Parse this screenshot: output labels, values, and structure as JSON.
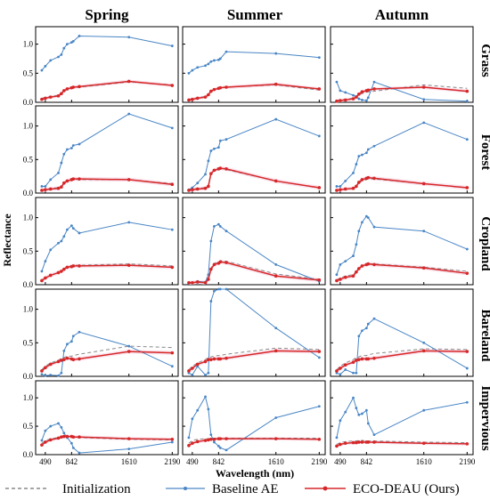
{
  "chart_data": {
    "type": "line",
    "columns": [
      "Spring",
      "Summer",
      "Autumn"
    ],
    "rows": [
      "Grass",
      "Forest",
      "Cropland",
      "Bareland",
      "Impervious"
    ],
    "xlabel": "Wavelength (nm)",
    "ylabel": "Reflectance",
    "x_ticks": [
      490,
      842,
      1610,
      2190
    ],
    "y_ticks": [
      0.0,
      0.5,
      1.0
    ],
    "ylim": [
      0,
      1.3
    ],
    "x": [
      443,
      490,
      560,
      665,
      705,
      740,
      783,
      842,
      865,
      945,
      1610,
      2190
    ],
    "legend": [
      {
        "name": "Initialization",
        "key": "init",
        "color": "#888888",
        "style": "dashed"
      },
      {
        "name": "Baseline AE",
        "key": "ae",
        "color": "#4a86c5",
        "style": "solid-dot"
      },
      {
        "name": "ECO-DEAU (Ours)",
        "key": "eco",
        "color": "#d62728",
        "style": "solid-dot"
      }
    ],
    "colors": {
      "init": "#888888",
      "ae": "#4a86c5",
      "eco": "#d62728",
      "band": "#f6d5e4"
    },
    "panels": [
      [
        {
          "init": [
            0.07,
            0.08,
            0.1,
            0.12,
            0.15,
            0.19,
            0.22,
            0.24,
            0.25,
            0.26,
            0.35,
            0.3
          ],
          "ae": [
            0.55,
            0.62,
            0.72,
            0.78,
            0.82,
            0.93,
            1.0,
            1.03,
            1.05,
            1.14,
            1.12,
            0.97
          ],
          "eco": [
            0.05,
            0.07,
            0.09,
            0.11,
            0.15,
            0.2,
            0.23,
            0.25,
            0.26,
            0.27,
            0.36,
            0.29
          ]
        },
        {
          "init": [
            0.05,
            0.06,
            0.08,
            0.1,
            0.14,
            0.19,
            0.22,
            0.24,
            0.25,
            0.26,
            0.3,
            0.21
          ],
          "ae": [
            0.5,
            0.55,
            0.6,
            0.63,
            0.66,
            0.7,
            0.72,
            0.73,
            0.75,
            0.87,
            0.84,
            0.77
          ],
          "eco": [
            0.04,
            0.05,
            0.07,
            0.09,
            0.13,
            0.19,
            0.22,
            0.24,
            0.25,
            0.26,
            0.31,
            0.23
          ]
        },
        {
          "init": [
            0.03,
            0.04,
            0.05,
            0.07,
            0.09,
            0.12,
            0.15,
            0.17,
            0.18,
            0.19,
            0.3,
            0.24
          ],
          "ae": [
            0.35,
            0.2,
            0.17,
            0.12,
            0.1,
            0.06,
            0.04,
            0.03,
            0.08,
            0.35,
            0.05,
            0.02
          ],
          "eco": [
            0.02,
            0.03,
            0.04,
            0.06,
            0.09,
            0.14,
            0.18,
            0.2,
            0.21,
            0.23,
            0.26,
            0.19
          ]
        }
      ],
      [
        {
          "init": [
            0.05,
            0.05,
            0.07,
            0.08,
            0.1,
            0.15,
            0.18,
            0.19,
            0.2,
            0.2,
            0.2,
            0.14
          ],
          "ae": [
            0.1,
            0.1,
            0.2,
            0.3,
            0.45,
            0.58,
            0.65,
            0.67,
            0.71,
            0.73,
            1.18,
            0.97
          ],
          "eco": [
            0.04,
            0.05,
            0.06,
            0.07,
            0.09,
            0.15,
            0.18,
            0.2,
            0.21,
            0.21,
            0.2,
            0.13
          ]
        },
        {
          "init": [
            0.05,
            0.06,
            0.07,
            0.08,
            0.12,
            0.29,
            0.33,
            0.36,
            0.37,
            0.35,
            0.18,
            0.08
          ],
          "ae": [
            0.05,
            0.08,
            0.15,
            0.28,
            0.48,
            0.63,
            0.66,
            0.68,
            0.78,
            0.8,
            1.1,
            0.85
          ],
          "eco": [
            0.04,
            0.05,
            0.06,
            0.07,
            0.1,
            0.29,
            0.34,
            0.36,
            0.37,
            0.36,
            0.18,
            0.08
          ]
        },
        {
          "init": [
            0.04,
            0.05,
            0.06,
            0.07,
            0.1,
            0.15,
            0.18,
            0.2,
            0.21,
            0.21,
            0.14,
            0.08
          ],
          "ae": [
            0.1,
            0.1,
            0.18,
            0.3,
            0.43,
            0.55,
            0.57,
            0.6,
            0.65,
            0.7,
            1.05,
            0.8
          ],
          "eco": [
            0.04,
            0.05,
            0.06,
            0.07,
            0.1,
            0.16,
            0.2,
            0.22,
            0.23,
            0.22,
            0.14,
            0.08
          ]
        }
      ],
      [
        {
          "init": [
            0.07,
            0.1,
            0.14,
            0.18,
            0.21,
            0.24,
            0.27,
            0.28,
            0.29,
            0.29,
            0.31,
            0.28
          ],
          "ae": [
            0.2,
            0.35,
            0.52,
            0.62,
            0.65,
            0.72,
            0.82,
            0.88,
            0.84,
            0.77,
            0.93,
            0.82
          ],
          "eco": [
            0.06,
            0.1,
            0.14,
            0.18,
            0.2,
            0.23,
            0.26,
            0.27,
            0.28,
            0.28,
            0.29,
            0.26
          ]
        },
        {
          "init": [
            0.03,
            0.03,
            0.04,
            0.03,
            0.08,
            0.25,
            0.32,
            0.34,
            0.36,
            0.35,
            0.16,
            0.08
          ],
          "ae": [
            0.02,
            0.03,
            0.05,
            0.04,
            0.15,
            0.65,
            0.87,
            0.9,
            0.87,
            0.8,
            0.3,
            0.05
          ],
          "eco": [
            0.03,
            0.03,
            0.04,
            0.03,
            0.08,
            0.23,
            0.3,
            0.32,
            0.34,
            0.33,
            0.13,
            0.07
          ]
        },
        {
          "init": [
            0.07,
            0.1,
            0.13,
            0.15,
            0.2,
            0.24,
            0.28,
            0.3,
            0.31,
            0.31,
            0.26,
            0.2
          ],
          "ae": [
            0.15,
            0.3,
            0.35,
            0.43,
            0.6,
            0.8,
            0.93,
            1.02,
            1.0,
            0.86,
            0.8,
            0.53
          ],
          "eco": [
            0.06,
            0.08,
            0.11,
            0.13,
            0.19,
            0.24,
            0.28,
            0.3,
            0.31,
            0.3,
            0.25,
            0.17
          ]
        }
      ],
      [
        {
          "init": [
            0.1,
            0.15,
            0.2,
            0.24,
            0.27,
            0.28,
            0.3,
            0.3,
            0.31,
            0.33,
            0.45,
            0.43
          ],
          "ae": [
            0.03,
            0.01,
            0.02,
            0.01,
            0.05,
            0.38,
            0.48,
            0.52,
            0.6,
            0.66,
            0.45,
            0.15
          ],
          "eco": [
            0.08,
            0.13,
            0.18,
            0.22,
            0.24,
            0.25,
            0.27,
            0.26,
            0.25,
            0.26,
            0.37,
            0.35
          ]
        },
        {
          "init": [
            0.1,
            0.15,
            0.2,
            0.25,
            0.28,
            0.29,
            0.3,
            0.31,
            0.31,
            0.33,
            0.42,
            0.4
          ],
          "ae": [
            0.05,
            0.02,
            0.15,
            0.02,
            0.05,
            1.12,
            1.27,
            1.3,
            1.33,
            1.3,
            0.72,
            0.28
          ],
          "eco": [
            0.08,
            0.12,
            0.18,
            0.22,
            0.25,
            0.25,
            0.26,
            0.26,
            0.26,
            0.27,
            0.38,
            0.37
          ]
        },
        {
          "init": [
            0.1,
            0.15,
            0.2,
            0.25,
            0.28,
            0.29,
            0.31,
            0.31,
            0.32,
            0.34,
            0.41,
            0.4
          ],
          "ae": [
            0.05,
            0.03,
            0.1,
            0.05,
            0.05,
            0.6,
            0.68,
            0.72,
            0.78,
            0.86,
            0.5,
            0.12
          ],
          "eco": [
            0.08,
            0.12,
            0.17,
            0.21,
            0.24,
            0.25,
            0.26,
            0.26,
            0.26,
            0.27,
            0.38,
            0.37
          ]
        }
      ],
      [
        {
          "init": [
            0.2,
            0.25,
            0.28,
            0.3,
            0.31,
            0.32,
            0.32,
            0.31,
            0.3,
            0.3,
            0.27,
            0.26
          ],
          "ae": [
            0.25,
            0.42,
            0.5,
            0.55,
            0.48,
            0.38,
            0.3,
            0.2,
            0.12,
            0.03,
            0.1,
            0.22
          ],
          "eco": [
            0.17,
            0.22,
            0.26,
            0.29,
            0.31,
            0.32,
            0.32,
            0.32,
            0.31,
            0.31,
            0.28,
            0.27
          ]
        },
        {
          "init": [
            0.2,
            0.25,
            0.27,
            0.28,
            0.28,
            0.29,
            0.29,
            0.29,
            0.29,
            0.29,
            0.29,
            0.29
          ],
          "ae": [
            0.3,
            0.63,
            0.78,
            1.02,
            0.8,
            0.35,
            0.22,
            0.15,
            0.12,
            0.08,
            0.65,
            0.85
          ],
          "eco": [
            0.16,
            0.2,
            0.23,
            0.25,
            0.26,
            0.27,
            0.27,
            0.28,
            0.28,
            0.28,
            0.28,
            0.27
          ]
        },
        {
          "init": [
            0.18,
            0.21,
            0.23,
            0.24,
            0.24,
            0.25,
            0.25,
            0.24,
            0.24,
            0.24,
            0.22,
            0.21
          ],
          "ae": [
            0.3,
            0.6,
            0.75,
            1.0,
            0.82,
            0.7,
            0.72,
            0.78,
            0.55,
            0.35,
            0.78,
            0.92
          ],
          "eco": [
            0.15,
            0.18,
            0.2,
            0.21,
            0.21,
            0.22,
            0.22,
            0.22,
            0.22,
            0.22,
            0.2,
            0.19
          ]
        }
      ]
    ]
  }
}
